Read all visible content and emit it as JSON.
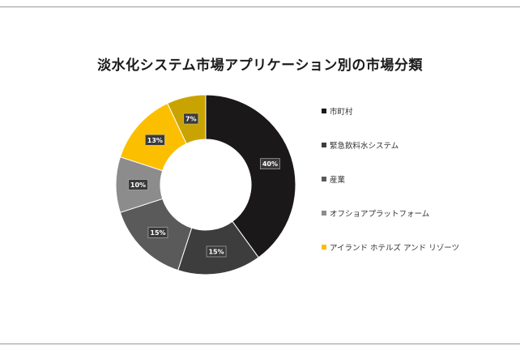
{
  "chart_data": {
    "type": "donut",
    "title": "淡水化システム市場アプリケーション別の市場分類",
    "series": [
      {
        "name": "市町村",
        "value": 40,
        "label": "40%",
        "color": "#1a1818"
      },
      {
        "name": "緊急飲料水システム",
        "value": 15,
        "label": "15%",
        "color": "#3d3d3d"
      },
      {
        "name": "産業",
        "value": 15,
        "label": "15%",
        "color": "#5a5a5a"
      },
      {
        "name": "オフショアプラットフォーム",
        "value": 10,
        "label": "10%",
        "color": "#8c8c8c"
      },
      {
        "name": "アイランド ホテルズ アンド リゾーツ",
        "value": 13,
        "label": "13%",
        "color": "#fcbf00"
      },
      {
        "name": "",
        "value": 7,
        "label": "7%",
        "color": "#c9a400"
      }
    ],
    "legend_position": "right"
  }
}
